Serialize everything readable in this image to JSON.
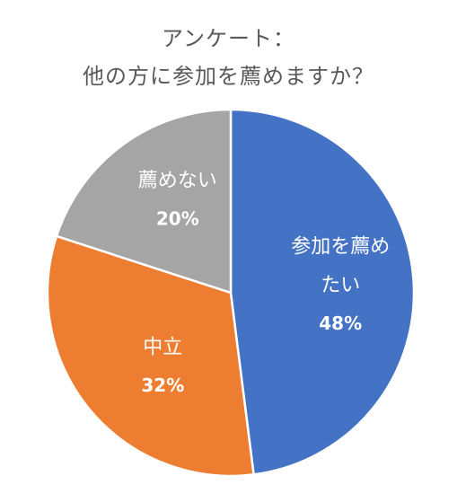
{
  "chart_data": {
    "type": "pie",
    "title_lines": [
      "アンケート：",
      "他の方に参加を薦めますか？"
    ],
    "slices": [
      {
        "label_lines": [
          "参加を薦め",
          "たい"
        ],
        "value": 48,
        "value_label": "48%",
        "color": "#4472C4"
      },
      {
        "label_lines": [
          "中立"
        ],
        "value": 32,
        "value_label": "32%",
        "color": "#ED7D31"
      },
      {
        "label_lines": [
          "薦めない"
        ],
        "value": 20,
        "value_label": "20%",
        "color": "#A5A5A5"
      }
    ],
    "start_angle": "12 o'clock",
    "direction": "clockwise",
    "legend": "none"
  }
}
